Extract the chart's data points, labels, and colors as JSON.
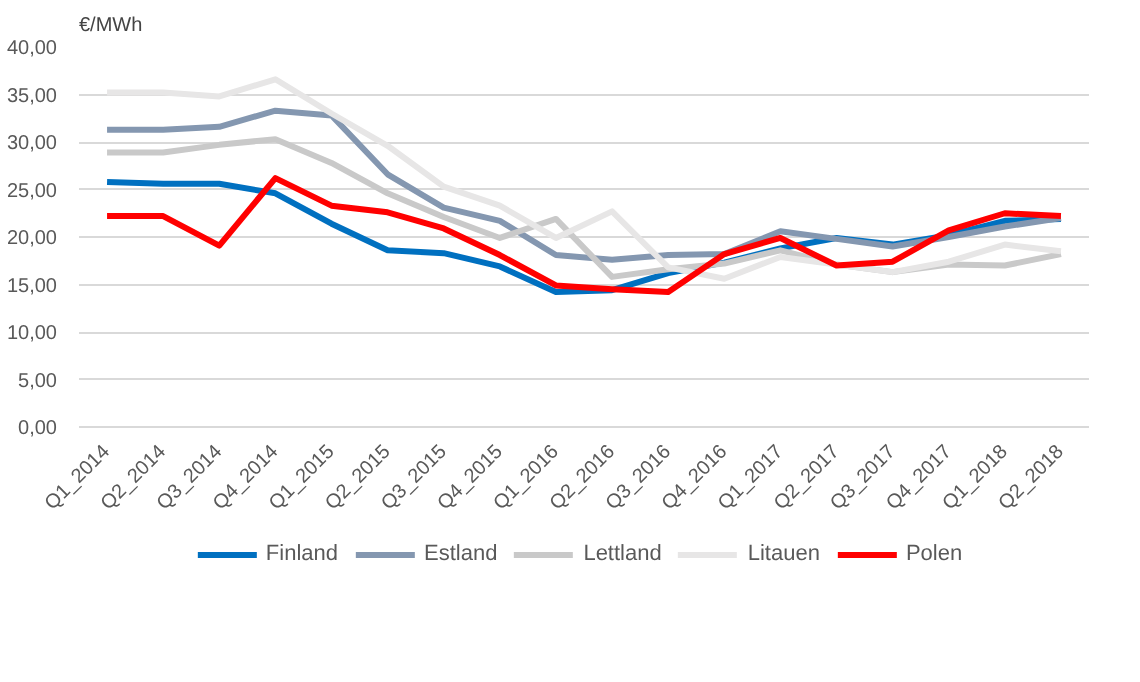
{
  "chart_data": {
    "type": "line",
    "ylabel": "€/MWh",
    "categories": [
      "Q1_2014",
      "Q2_2014",
      "Q3_2014",
      "Q4_2014",
      "Q1_2015",
      "Q2_2015",
      "Q3_2015",
      "Q4_2015",
      "Q1_2016",
      "Q2_2016",
      "Q3_2016",
      "Q4_2016",
      "Q1_2017",
      "Q2_2017",
      "Q3_2017",
      "Q4_2017",
      "Q1_2018",
      "Q2_2018"
    ],
    "series": [
      {
        "name": "Finland",
        "color": "#0070c0",
        "values": [
          25.8,
          25.6,
          25.6,
          24.6,
          21.4,
          18.6,
          18.3,
          16.9,
          14.2,
          14.4,
          16.2,
          17.3,
          18.8,
          19.9,
          19.2,
          20.2,
          21.7,
          21.9
        ]
      },
      {
        "name": "Estland",
        "color": "#8497b0",
        "values": [
          31.3,
          31.3,
          31.6,
          33.3,
          32.8,
          26.6,
          23.1,
          21.7,
          18.1,
          17.6,
          18.1,
          18.2,
          20.6,
          19.8,
          19.0,
          20.0,
          21.1,
          22.0
        ]
      },
      {
        "name": "Lettland",
        "color": "#c9c9c9",
        "values": [
          28.9,
          28.9,
          29.7,
          30.3,
          27.8,
          24.6,
          22.1,
          19.9,
          21.9,
          15.8,
          16.6,
          17.2,
          18.6,
          17.1,
          16.3,
          17.1,
          17.0,
          18.2
        ]
      },
      {
        "name": "Litauen",
        "color": "#e7e6e6",
        "values": [
          35.2,
          35.2,
          34.8,
          36.6,
          33.0,
          29.6,
          25.3,
          23.3,
          19.9,
          22.7,
          16.8,
          15.6,
          17.9,
          17.1,
          16.3,
          17.4,
          19.2,
          18.5
        ]
      },
      {
        "name": "Polen",
        "color": "#ff0000",
        "values": [
          22.2,
          22.2,
          19.1,
          26.2,
          23.3,
          22.6,
          20.9,
          18.1,
          14.9,
          14.5,
          14.2,
          18.2,
          19.9,
          17.0,
          17.4,
          20.7,
          22.5,
          22.2
        ]
      }
    ],
    "ylim": [
      0,
      40
    ],
    "yticks": [
      {
        "value": 0,
        "label": "0,00"
      },
      {
        "value": 5,
        "label": "5,00"
      },
      {
        "value": 10,
        "label": "10,00"
      },
      {
        "value": 15,
        "label": "15,00"
      },
      {
        "value": 20,
        "label": "20,00"
      },
      {
        "value": 25,
        "label": "25,00"
      },
      {
        "value": 30,
        "label": "30,00"
      },
      {
        "value": 35,
        "label": "35,00"
      },
      {
        "value": 40,
        "label": "40,00"
      }
    ],
    "grid": "y",
    "legend": "bottom",
    "line_style": "solid"
  }
}
